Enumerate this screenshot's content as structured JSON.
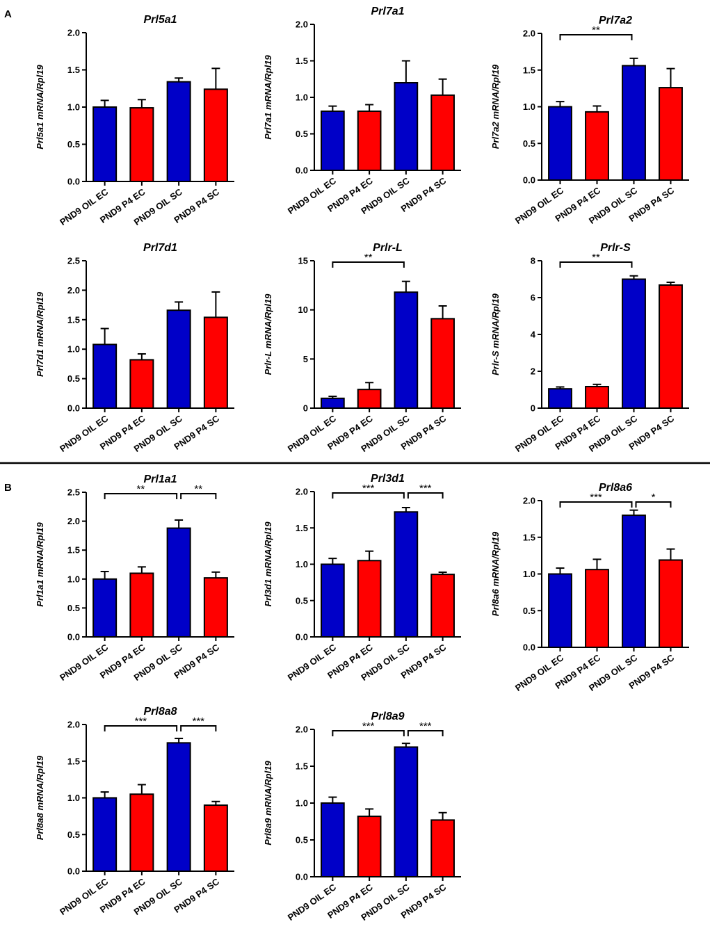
{
  "figure": {
    "panel_labels": [
      "A",
      "B"
    ],
    "colors": {
      "oil": "#0000c8",
      "p4": "#ff0000",
      "axis": "#000000"
    }
  },
  "chart_data": [
    {
      "id": "prl5a1",
      "type": "bar",
      "title": "Prl5a1",
      "ylabel": "Prl5a1 mRNA/Rpl19",
      "ylim": [
        0,
        2.0
      ],
      "yticks": [
        "0.0",
        "0.5",
        "1.0",
        "1.5",
        "2.0"
      ],
      "categories": [
        "PND9 OIL EC",
        "PND9 P4 EC",
        "PND9 OIL SC",
        "PND9 P4 SC"
      ],
      "values": [
        1.0,
        0.99,
        1.34,
        1.24
      ],
      "errors": [
        0.09,
        0.11,
        0.05,
        0.28
      ],
      "significance": []
    },
    {
      "id": "prl7a1",
      "type": "bar",
      "title": "Prl7a1",
      "ylabel": "Prl7a1 mRNA/Rpl19",
      "ylim": [
        0,
        2.0
      ],
      "yticks": [
        "0.0",
        "0.5",
        "1.0",
        "1.5",
        "2.0"
      ],
      "categories": [
        "PND9 OIL EC",
        "PND9 P4 EC",
        "PND9 OIL SC",
        "PND9 P4 SC"
      ],
      "values": [
        0.81,
        0.81,
        1.2,
        1.03
      ],
      "errors": [
        0.07,
        0.09,
        0.3,
        0.22
      ],
      "significance": []
    },
    {
      "id": "prl7a2",
      "type": "bar",
      "title": "Prl7a2",
      "ylabel": "Prl7a2 mRNA/Rpl19",
      "ylim": [
        0,
        2.0
      ],
      "yticks": [
        "0.0",
        "0.5",
        "1.0",
        "1.5",
        "2.0"
      ],
      "categories": [
        "PND9 OIL EC",
        "PND9 P4 EC",
        "PND9 OIL SC",
        "PND9 P4 SC"
      ],
      "values": [
        1.0,
        0.93,
        1.56,
        1.26
      ],
      "errors": [
        0.07,
        0.08,
        0.1,
        0.26
      ],
      "significance": [
        {
          "from": 0,
          "to": 2,
          "label": "**"
        }
      ]
    },
    {
      "id": "prl7d1",
      "type": "bar",
      "title": "Prl7d1",
      "ylabel": "Prl7d1 mRNA/Rpl19",
      "ylim": [
        0,
        2.5
      ],
      "yticks": [
        "0.0",
        "0.5",
        "1.0",
        "1.5",
        "2.0",
        "2.5"
      ],
      "categories": [
        "PND9 OIL EC",
        "PND9 P4 EC",
        "PND9 OIL SC",
        "PND9 P4 SC"
      ],
      "values": [
        1.08,
        0.82,
        1.66,
        1.54
      ],
      "errors": [
        0.27,
        0.1,
        0.14,
        0.43
      ],
      "significance": []
    },
    {
      "id": "prlr-l",
      "type": "bar",
      "title": "Prlr-L",
      "ylabel": "Prlr-L mRNA/Rpl19",
      "ylim": [
        0,
        15
      ],
      "yticks": [
        "0",
        "5",
        "10",
        "15"
      ],
      "categories": [
        "PND9 OIL EC",
        "PND9 P4 EC",
        "PND9 OIL SC",
        "PND9 P4 SC"
      ],
      "values": [
        1.0,
        1.9,
        11.8,
        9.1
      ],
      "errors": [
        0.2,
        0.7,
        1.1,
        1.3
      ],
      "significance": [
        {
          "from": 0,
          "to": 2,
          "label": "**"
        }
      ]
    },
    {
      "id": "prlr-s",
      "type": "bar",
      "title": "Prlr-S",
      "ylabel": "Prlr-S mRNA/Rpl19",
      "ylim": [
        0,
        8
      ],
      "yticks": [
        "0",
        "2",
        "4",
        "6",
        "8"
      ],
      "categories": [
        "PND9 OIL EC",
        "PND9 P4 EC",
        "PND9 OIL SC",
        "PND9 P4 SC"
      ],
      "values": [
        1.05,
        1.17,
        7.0,
        6.68
      ],
      "errors": [
        0.1,
        0.12,
        0.18,
        0.15
      ],
      "significance": [
        {
          "from": 0,
          "to": 2,
          "label": "**"
        }
      ]
    },
    {
      "id": "prl1a1",
      "type": "bar",
      "title": "Prl1a1",
      "ylabel": "Prl1a1 mRNA/Rpl19",
      "ylim": [
        0,
        2.5
      ],
      "yticks": [
        "0.0",
        "0.5",
        "1.0",
        "1.5",
        "2.0",
        "2.5"
      ],
      "categories": [
        "PND9 OIL EC",
        "PND9 P4 EC",
        "PND9 OIL SC",
        "PND9 P4 SC"
      ],
      "values": [
        1.0,
        1.1,
        1.88,
        1.02
      ],
      "errors": [
        0.13,
        0.11,
        0.14,
        0.1
      ],
      "significance": [
        {
          "from": 0,
          "to": 2,
          "label": "**"
        },
        {
          "from": 2,
          "to": 3,
          "label": "**"
        }
      ]
    },
    {
      "id": "prl3d1",
      "type": "bar",
      "title": "Prl3d1",
      "ylabel": "Prl3d1 mRNA/Rpl19",
      "ylim": [
        0,
        2.0
      ],
      "yticks": [
        "0.0",
        "0.5",
        "1.0",
        "1.5",
        "2.0"
      ],
      "categories": [
        "PND9 OIL EC",
        "PND9 P4 EC",
        "PND9 OIL SC",
        "PND9 P4 SC"
      ],
      "values": [
        1.0,
        1.05,
        1.72,
        0.86
      ],
      "errors": [
        0.08,
        0.13,
        0.06,
        0.03
      ],
      "significance": [
        {
          "from": 0,
          "to": 2,
          "label": "***"
        },
        {
          "from": 2,
          "to": 3,
          "label": "***"
        }
      ]
    },
    {
      "id": "prl8a6",
      "type": "bar",
      "title": "Prl8a6",
      "ylabel": "Prl8a6 mRNA/Rpl19",
      "ylim": [
        0,
        2.0
      ],
      "yticks": [
        "0.0",
        "0.5",
        "1.0",
        "1.5",
        "2.0"
      ],
      "categories": [
        "PND9 OIL EC",
        "PND9 P4 EC",
        "PND9 OIL SC",
        "PND9 P4 SC"
      ],
      "values": [
        1.0,
        1.06,
        1.8,
        1.19
      ],
      "errors": [
        0.08,
        0.14,
        0.07,
        0.15
      ],
      "significance": [
        {
          "from": 0,
          "to": 2,
          "label": "***"
        },
        {
          "from": 2,
          "to": 3,
          "label": "*"
        }
      ]
    },
    {
      "id": "prl8a8",
      "type": "bar",
      "title": "Prl8a8",
      "ylabel": "Prl8a8 mRNA/Rpl19",
      "ylim": [
        0,
        2.0
      ],
      "yticks": [
        "0.0",
        "0.5",
        "1.0",
        "1.5",
        "2.0"
      ],
      "categories": [
        "PND9 OIL EC",
        "PND9 P4 EC",
        "PND9 OIL SC",
        "PND9 P4 SC"
      ],
      "values": [
        1.0,
        1.05,
        1.75,
        0.9
      ],
      "errors": [
        0.08,
        0.13,
        0.06,
        0.05
      ],
      "significance": [
        {
          "from": 0,
          "to": 2,
          "label": "***"
        },
        {
          "from": 2,
          "to": 3,
          "label": "***"
        }
      ]
    },
    {
      "id": "prl8a9",
      "type": "bar",
      "title": "Prl8a9",
      "ylabel": "Prl8a9 mRNA/Rpl19",
      "ylim": [
        0,
        2.0
      ],
      "yticks": [
        "0.0",
        "0.5",
        "1.0",
        "1.5",
        "2.0"
      ],
      "categories": [
        "PND9 OIL EC",
        "PND9 P4 EC",
        "PND9 OIL SC",
        "PND9 P4 SC"
      ],
      "values": [
        1.0,
        0.82,
        1.76,
        0.77
      ],
      "errors": [
        0.08,
        0.1,
        0.05,
        0.1
      ],
      "significance": [
        {
          "from": 0,
          "to": 2,
          "label": "***"
        },
        {
          "from": 2,
          "to": 3,
          "label": "***"
        }
      ]
    }
  ]
}
